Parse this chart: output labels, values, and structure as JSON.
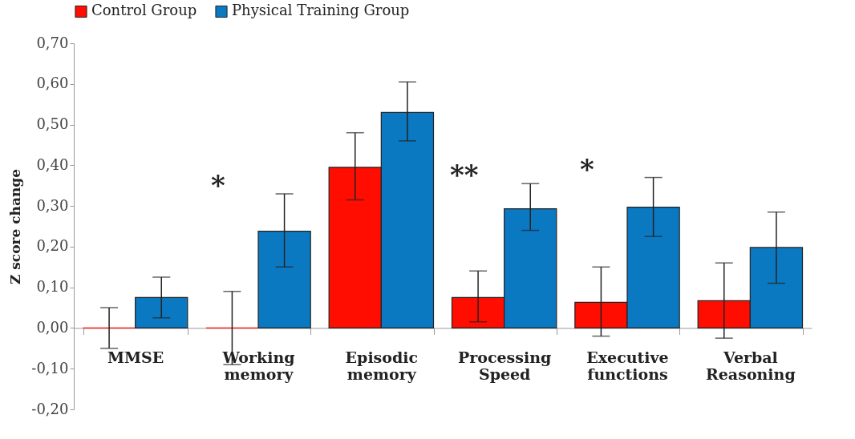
{
  "chart_data": {
    "type": "bar",
    "ylabel": "Z score change",
    "categories": [
      "MMSE",
      "Working memory",
      "Episodic memory",
      "Processing Speed",
      "Executive functions",
      "Verbal Reasoning"
    ],
    "series": [
      {
        "name": "Control Group",
        "color": "#ff0d00",
        "values": [
          0,
          0,
          0.395,
          0.075,
          0.063,
          0.067
        ],
        "errors": [
          [
            -0.05,
            0.05
          ],
          [
            -0.09,
            0.09
          ],
          [
            0.315,
            0.48
          ],
          [
            0.015,
            0.14
          ],
          [
            -0.02,
            0.15
          ],
          [
            -0.025,
            0.16
          ]
        ]
      },
      {
        "name": "Physical Training Group",
        "color": "#0a79c2",
        "values": [
          0.075,
          0.238,
          0.53,
          0.293,
          0.297,
          0.198
        ],
        "errors": [
          [
            0.025,
            0.125
          ],
          [
            0.15,
            0.33
          ],
          [
            0.46,
            0.605
          ],
          [
            0.24,
            0.355
          ],
          [
            0.225,
            0.37
          ],
          [
            0.11,
            0.285
          ]
        ]
      }
    ],
    "ylim": [
      -0.2,
      0.7
    ],
    "yticks": [
      {
        "value": -0.2,
        "label": "-0,20"
      },
      {
        "value": -0.1,
        "label": "-0,10"
      },
      {
        "value": 0,
        "label": "0,00"
      },
      {
        "value": 0.1,
        "label": "0,10"
      },
      {
        "value": 0.2,
        "label": "0,20"
      },
      {
        "value": 0.3,
        "label": "0,30"
      },
      {
        "value": 0.4,
        "label": "0,40"
      },
      {
        "value": 0.5,
        "label": "0,50"
      },
      {
        "value": 0.6,
        "label": "0,60"
      },
      {
        "value": 0.7,
        "label": "0,70"
      }
    ],
    "annotations": [
      "*",
      "**",
      "*"
    ],
    "legend": "top",
    "grid": false
  }
}
